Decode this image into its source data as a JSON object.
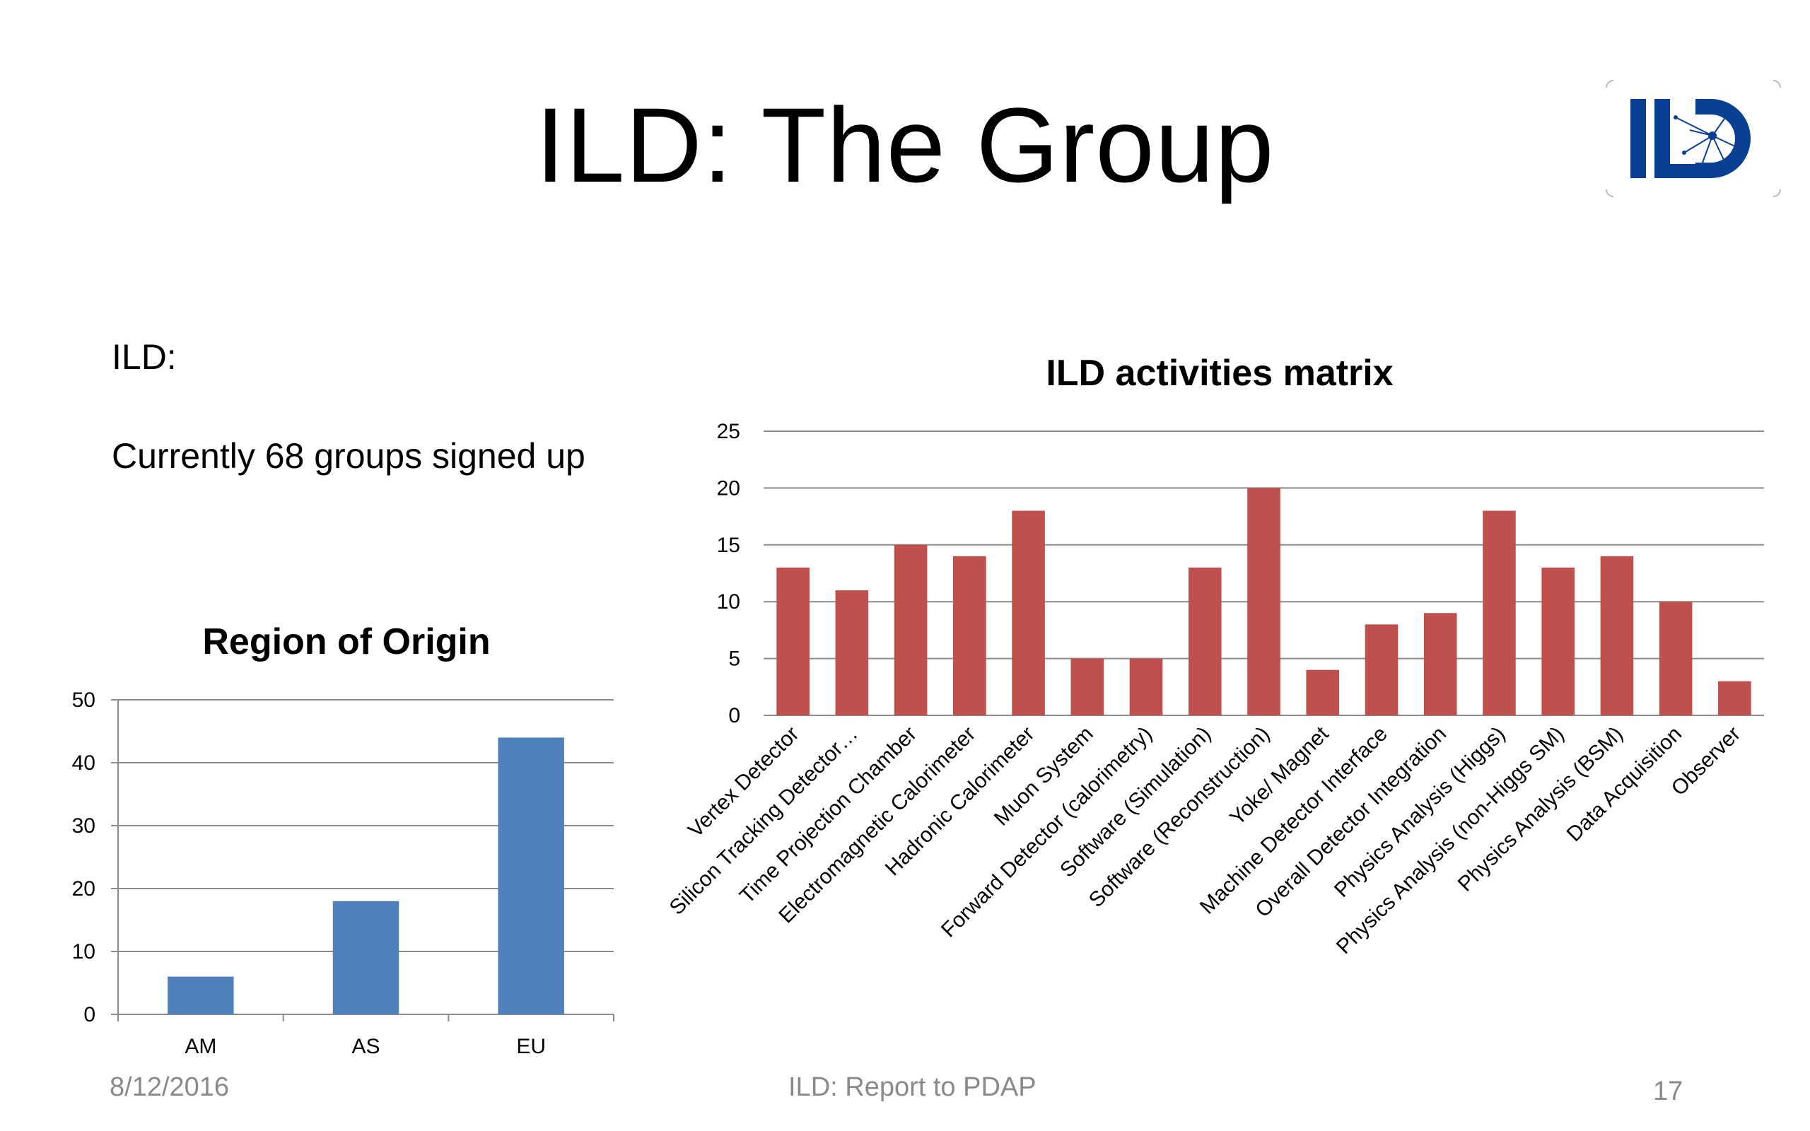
{
  "slide": {
    "title": "ILD: The Group",
    "bullet_heading": "ILD:",
    "bullet_text": "Currently 68 groups signed up"
  },
  "logo": {
    "icon": "ild-logo-icon",
    "color": "#0a3f93"
  },
  "footer": {
    "date": "8/12/2016",
    "center": "ILD: Report to PDAP",
    "page": "17"
  },
  "chart_data": [
    {
      "type": "bar",
      "title": "Region of Origin",
      "categories": [
        "AM",
        "AS",
        "EU"
      ],
      "values": [
        6,
        18,
        44
      ],
      "yticks": [
        "0",
        "10",
        "20",
        "30",
        "40",
        "50"
      ],
      "ylim": [
        0,
        50
      ],
      "grid": true,
      "color": "#4f81bd"
    },
    {
      "type": "bar",
      "title": "ILD activities matrix",
      "categories": [
        "Vertex Detector",
        "Silicon Tracking Detector…",
        "Time Projection Chamber",
        "Electromagnetic Calorimeter",
        "Hadronic Calorimeter",
        "Muon System",
        "Forward Detector (calorimetry)",
        "Software (Simulation)",
        "Software (Reconstruction)",
        "Yoke/ Magnet",
        "Machine Detector Interface",
        "Overall Detector Integration",
        "Physics Analysis (Higgs)",
        "Physics Analysis (non-Higgs SM)",
        "Physics Analysis (BSM)",
        "Data Acquisition",
        "Observer"
      ],
      "values": [
        13,
        11,
        15,
        14,
        18,
        5,
        5,
        13,
        20,
        4,
        8,
        9,
        18,
        13,
        14,
        10,
        3
      ],
      "yticks": [
        "0",
        "5",
        "10",
        "15",
        "20",
        "25"
      ],
      "ylim": [
        0,
        25
      ],
      "grid": true,
      "color": "#c0504d"
    }
  ]
}
